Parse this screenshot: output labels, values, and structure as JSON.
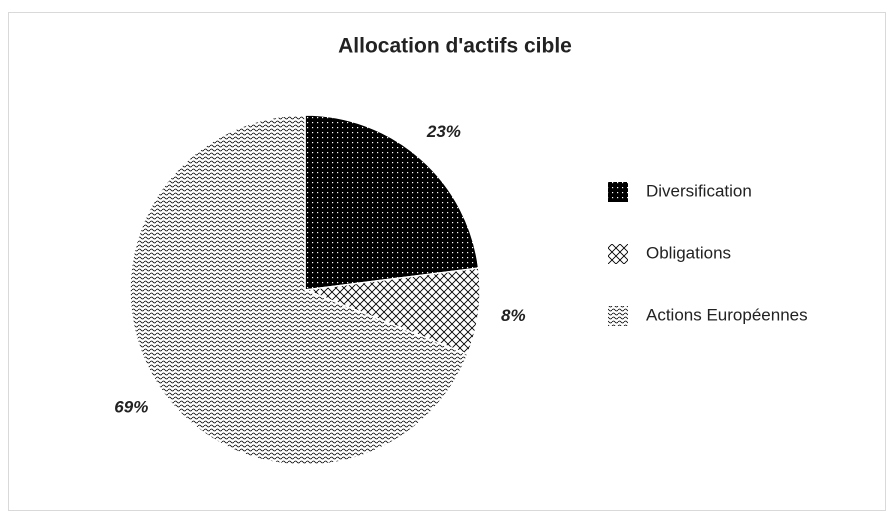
{
  "chart_data": {
    "type": "pie",
    "title": "Allocation d'actifs cible",
    "categories": [
      "Diversification",
      "Obligations",
      "Actions Européennes"
    ],
    "values": [
      23,
      8,
      69
    ],
    "value_labels": [
      "23%",
      "8%",
      "69%"
    ],
    "legend": "right"
  }
}
